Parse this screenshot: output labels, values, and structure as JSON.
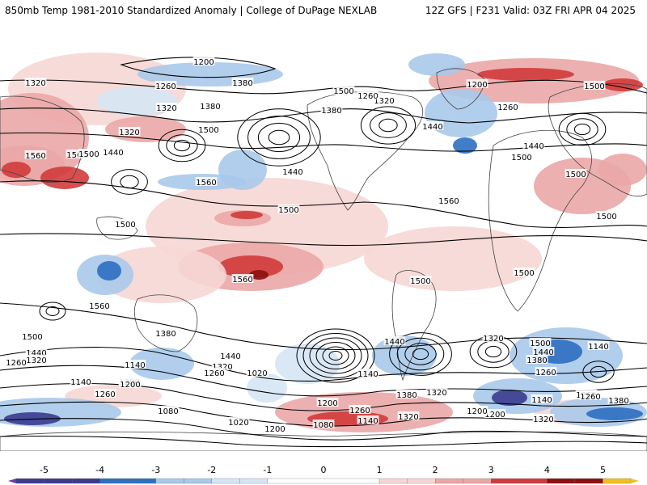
{
  "header": {
    "title": "850mb Temp 1981-2010 Standardized Anomaly | College of DuPage NEXLAB",
    "run_info": "12Z GFS | F231 Valid: 03Z FRI APR 04 2025"
  },
  "colors": {
    "strong_neg": "#3a3c8f",
    "mid_neg": "#2e6fc2",
    "light_neg": "#a9c9ea",
    "very_light_neg": "#d6e6f5",
    "very_light_pos": "#f6d7d4",
    "light_pos": "#eaa7a7",
    "mid_pos": "#d23b3b",
    "strong_pos": "#8c1010",
    "extreme_pos": "#f0c020",
    "contour": "#000000",
    "coast": "#444444"
  },
  "colorbar": {
    "tick_labels": [
      "-5",
      "-4",
      "-3",
      "-2",
      "-1",
      "0",
      "1",
      "2",
      "3",
      "4",
      "5"
    ],
    "min": -5.5,
    "max": 5.5
  },
  "contour_labels": [
    "1200",
    "1320",
    "1260",
    "1320",
    "1380",
    "1500",
    "1560",
    "1500",
    "1440",
    "1560",
    "1440",
    "1320",
    "1380",
    "1500",
    "1320",
    "1260",
    "1200",
    "1380",
    "1440",
    "1500",
    "1260",
    "1500",
    "1440",
    "1500",
    "1560",
    "1500",
    "1560",
    "1500",
    "1500",
    "1500",
    "1560",
    "1500",
    "1500",
    "1380",
    "1560",
    "1440",
    "1320",
    "1260",
    "1200",
    "1440",
    "1320",
    "1260",
    "1140",
    "1200",
    "1140",
    "1020",
    "1080",
    "1020",
    "1200",
    "1080",
    "1140",
    "1200",
    "1260",
    "1380",
    "1320",
    "1140",
    "1260",
    "1320",
    "1200",
    "1440",
    "1500",
    "1380",
    "1320",
    "1260",
    "1380",
    "1140",
    "1260",
    "1200",
    "1140",
    "1440",
    "1320",
    "1260"
  ]
}
